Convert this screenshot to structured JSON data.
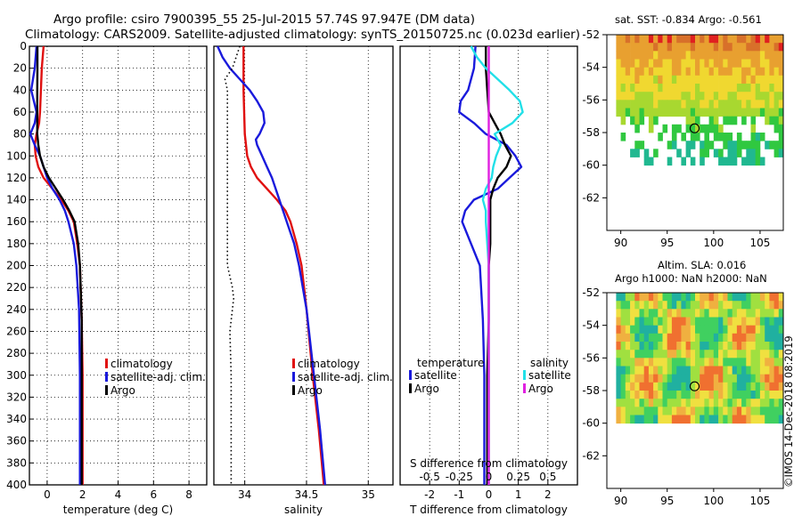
{
  "header": {
    "title_line1": "Argo profile: csiro 7900395_55 25-Jul-2015 57.74S 97.947E (DM data)",
    "title_line2": "Climatology: CARS2009. Satellite-adjusted climatology: synTS_20150725.nc (0.023d earlier)"
  },
  "map_sst": {
    "title": "sat. SST: -0.834 Argo: -0.561"
  },
  "map_sla": {
    "title_line1": "Altim. SLA: 0.016",
    "title_line2": "Argo h1000: NaN h2000: NaN"
  },
  "credit": "©IMOS 14-Dec-2018 08:2019",
  "colors": {
    "climatology": "#e01010",
    "satellite": "#1a1adc",
    "argo": "#000000",
    "salinity_satellite": "#22e0e8",
    "salinity_argo": "#e020e0"
  },
  "chart_data": [
    {
      "id": "temperature",
      "type": "line",
      "xlabel": "temperature (deg C)",
      "ylabel": "",
      "xlim": [
        -1,
        9
      ],
      "ylim": [
        400,
        0
      ],
      "xticks": [
        0,
        2,
        4,
        6,
        8
      ],
      "yticks": [
        0,
        20,
        40,
        60,
        80,
        100,
        120,
        140,
        160,
        180,
        200,
        220,
        240,
        260,
        280,
        300,
        320,
        340,
        360,
        380,
        400
      ],
      "legend": [
        "climatology",
        "satellite-adj. clim.",
        "Argo"
      ],
      "legend_position": "lower-right",
      "series": [
        {
          "name": "climatology",
          "color": "#e01010",
          "depth": [
            0,
            20,
            40,
            60,
            70,
            80,
            90,
            100,
            110,
            120,
            130,
            140,
            150,
            160,
            180,
            200,
            250,
            300,
            350,
            400
          ],
          "values": [
            -0.2,
            -0.3,
            -0.35,
            -0.4,
            -0.45,
            -0.6,
            -0.7,
            -0.65,
            -0.5,
            -0.2,
            0.3,
            0.8,
            1.2,
            1.5,
            1.7,
            1.85,
            1.95,
            2.0,
            2.0,
            2.0
          ]
        },
        {
          "name": "satellite-adj. clim.",
          "color": "#1a1adc",
          "depth": [
            0,
            10,
            20,
            30,
            40,
            50,
            60,
            70,
            80,
            90,
            100,
            110,
            120,
            130,
            140,
            150,
            160,
            180,
            200,
            240,
            300,
            350,
            400
          ],
          "values": [
            -0.6,
            -0.65,
            -0.7,
            -0.8,
            -0.9,
            -0.75,
            -0.6,
            -0.7,
            -0.95,
            -0.7,
            -0.4,
            -0.2,
            0.0,
            0.3,
            0.7,
            1.0,
            1.2,
            1.5,
            1.65,
            1.8,
            1.85,
            1.85,
            1.85
          ]
        },
        {
          "name": "Argo",
          "color": "#000000",
          "depth": [
            0,
            20,
            40,
            60,
            80,
            90,
            100,
            110,
            120,
            130,
            140,
            150,
            160,
            180,
            200,
            250,
            300,
            350,
            400
          ],
          "values": [
            -0.55,
            -0.55,
            -0.56,
            -0.56,
            -0.56,
            -0.5,
            -0.4,
            -0.2,
            0.1,
            0.5,
            0.9,
            1.25,
            1.55,
            1.75,
            1.85,
            1.95,
            1.95,
            1.95,
            1.95
          ]
        }
      ]
    },
    {
      "id": "salinity",
      "type": "line",
      "xlabel": "salinity",
      "xlim": [
        33.75,
        35.2
      ],
      "ylim": [
        400,
        0
      ],
      "xticks": [
        34,
        34.5,
        35
      ],
      "xticklabels": [
        "34",
        "34.5",
        "35"
      ],
      "legend": [
        "climatology",
        "satellite-adj. clim.",
        "Argo"
      ],
      "legend_position": "lower-right",
      "series": [
        {
          "name": "climatology",
          "color": "#e01010",
          "depth": [
            0,
            40,
            80,
            100,
            110,
            120,
            130,
            140,
            150,
            160,
            180,
            200,
            240,
            300,
            350,
            400
          ],
          "values": [
            33.99,
            33.99,
            34.0,
            34.02,
            34.05,
            34.1,
            34.18,
            34.26,
            34.33,
            34.37,
            34.42,
            34.46,
            34.5,
            34.55,
            34.6,
            34.64
          ]
        },
        {
          "name": "satellite-adj. clim.",
          "color": "#1a1adc",
          "depth": [
            0,
            10,
            20,
            30,
            40,
            50,
            60,
            70,
            80,
            85,
            90,
            100,
            110,
            120,
            140,
            160,
            180,
            200,
            240,
            300,
            350,
            400
          ],
          "values": [
            33.78,
            33.82,
            33.88,
            33.96,
            34.04,
            34.1,
            34.15,
            34.16,
            34.12,
            34.09,
            34.1,
            34.14,
            34.18,
            34.22,
            34.28,
            34.34,
            34.4,
            34.44,
            34.5,
            34.56,
            34.61,
            34.65
          ]
        },
        {
          "name": "Argo",
          "color": "#000000",
          "dotted": true,
          "depth": [
            0,
            20,
            30,
            40,
            60,
            80,
            100,
            140,
            180,
            200,
            220,
            230,
            240,
            260,
            300,
            340,
            370,
            400
          ],
          "values": [
            33.96,
            33.9,
            33.84,
            33.86,
            33.86,
            33.86,
            33.86,
            33.86,
            33.86,
            33.86,
            33.9,
            33.91,
            33.9,
            33.88,
            33.89,
            33.89,
            33.89,
            33.89
          ]
        }
      ]
    },
    {
      "id": "difference",
      "type": "line",
      "xlabel": "T difference from climatology",
      "title_inner": "S difference from climatology",
      "xlim": [
        -3,
        3
      ],
      "ylim": [
        400,
        0
      ],
      "xticks": [
        -2,
        -1,
        0,
        1,
        2
      ],
      "s_xticks": [
        -0.5,
        -0.25,
        0,
        0.25,
        0.5
      ],
      "s_xticklabels": [
        "-0.5",
        "-0.25",
        "0",
        "0.25",
        "0.5"
      ],
      "legend_temperature": {
        "title": "temperature",
        "items": [
          "satellite",
          "Argo"
        ]
      },
      "legend_salinity": {
        "title": "salinity",
        "items": [
          "satellite",
          "Argo"
        ]
      },
      "legend_position": "lower",
      "series": [
        {
          "name": "T satellite",
          "color": "#1a1adc",
          "depth": [
            0,
            20,
            40,
            50,
            60,
            70,
            80,
            90,
            100,
            110,
            120,
            130,
            140,
            150,
            160,
            180,
            200,
            250,
            300,
            350,
            400
          ],
          "values": [
            -0.45,
            -0.5,
            -0.7,
            -0.95,
            -1.0,
            -0.5,
            -0.1,
            0.6,
            0.9,
            1.1,
            0.7,
            0.3,
            -0.5,
            -0.8,
            -0.9,
            -0.6,
            -0.3,
            -0.2,
            -0.15,
            -0.15,
            -0.15
          ]
        },
        {
          "name": "T Argo",
          "color": "#000000",
          "depth": [
            0,
            20,
            40,
            60,
            70,
            80,
            90,
            100,
            110,
            120,
            130,
            140,
            160,
            180,
            200,
            250,
            300,
            350,
            400
          ],
          "values": [
            -0.1,
            -0.1,
            -0.05,
            0.0,
            0.2,
            0.4,
            0.55,
            0.75,
            0.6,
            0.3,
            0.15,
            0.05,
            0.05,
            0.05,
            0.0,
            0.0,
            -0.05,
            -0.05,
            -0.05
          ]
        },
        {
          "name": "S satellite",
          "color": "#22e0e8",
          "depth": [
            0,
            10,
            20,
            30,
            40,
            50,
            60,
            70,
            80,
            90,
            100,
            110,
            120,
            130,
            140,
            150,
            160,
            180,
            200,
            250,
            300,
            350,
            400
          ],
          "values": [
            -0.6,
            -0.4,
            -0.1,
            0.3,
            0.7,
            1.05,
            1.15,
            0.8,
            0.2,
            0.4,
            0.25,
            0.15,
            0.1,
            -0.1,
            -0.2,
            -0.1,
            -0.1,
            -0.05,
            0.0,
            0.0,
            0.0,
            0.0,
            0.0
          ]
        },
        {
          "name": "S Argo",
          "color": "#e020e0",
          "depth": [
            0,
            400
          ],
          "values": [
            0,
            0
          ]
        }
      ]
    },
    {
      "id": "sst_map",
      "type": "heatmap",
      "title": "sat. SST: -0.834 Argo: -0.561",
      "xlim": [
        88.5,
        107.5
      ],
      "ylim": [
        -64,
        -52
      ],
      "xticks": [
        90,
        95,
        100,
        105
      ],
      "yticks": [
        -52,
        -54,
        -56,
        -58,
        -60,
        -62
      ],
      "marker": {
        "lon": 97.95,
        "lat": -57.74
      }
    },
    {
      "id": "sla_map",
      "type": "heatmap",
      "title": "Altim. SLA: 0.016",
      "xlim": [
        88.5,
        107.5
      ],
      "ylim": [
        -64,
        -52
      ],
      "xticks": [
        90,
        95,
        100,
        105
      ],
      "yticks": [
        -52,
        -54,
        -56,
        -58,
        -60,
        -62
      ],
      "marker": {
        "lon": 97.95,
        "lat": -57.74
      }
    }
  ]
}
